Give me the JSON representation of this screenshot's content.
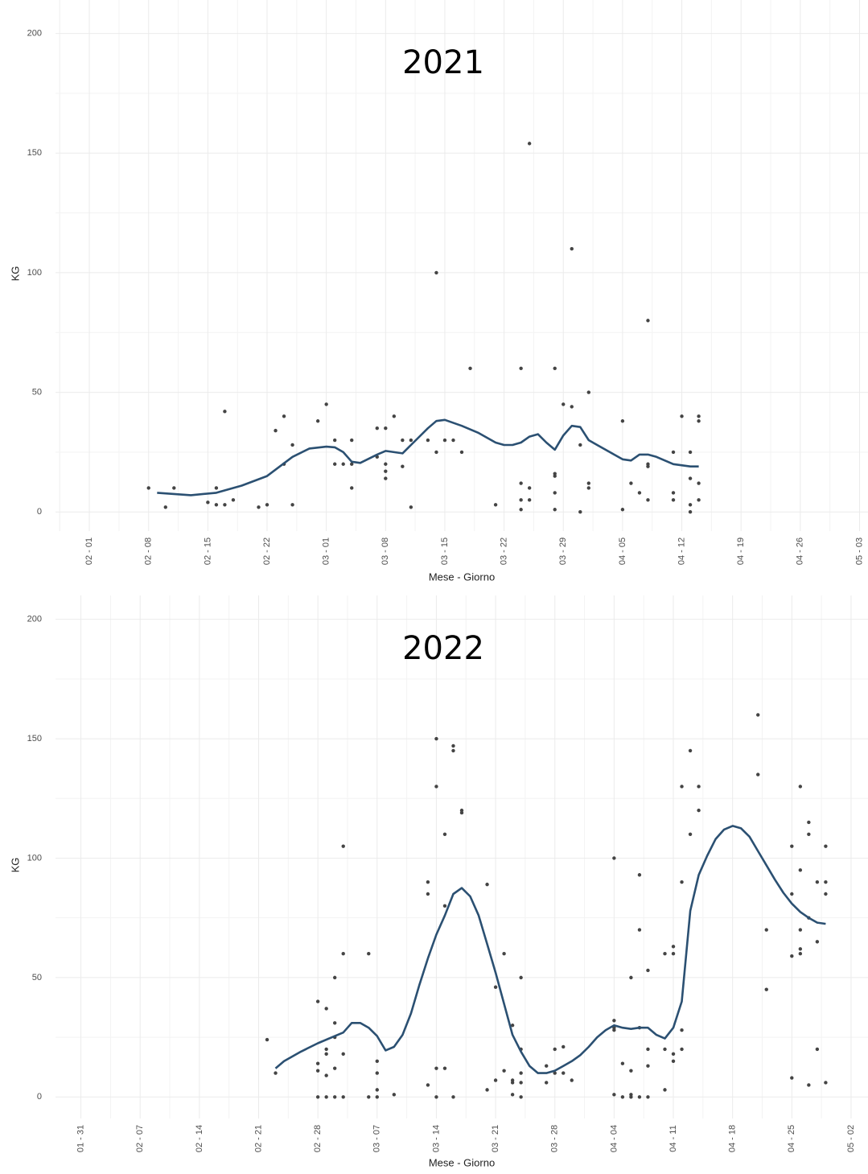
{
  "chart_data": [
    {
      "type": "scatter",
      "title": "2021",
      "x_label": "Mese - Giorno",
      "y_label": "KG",
      "xlim": [
        "01 - 28",
        "05 - 04"
      ],
      "xticks": [
        "02 - 01",
        "02 - 08",
        "02 - 15",
        "02 - 22",
        "03 - 01",
        "03 - 08",
        "03 - 15",
        "03 - 22",
        "03 - 29",
        "04 - 05",
        "04 - 12",
        "04 - 19",
        "04 - 26",
        "05 - 03"
      ],
      "ylim": [
        -8,
        214
      ],
      "yticks": [
        0,
        50,
        100,
        150,
        200
      ],
      "grid": true,
      "series": [
        {
          "mode": "points",
          "color": "#444444",
          "x": [
            "02 - 08",
            "02 - 10",
            "02 - 11",
            "02 - 15",
            "02 - 16",
            "02 - 16",
            "02 - 17",
            "02 - 17",
            "02 - 18",
            "02 - 21",
            "02 - 22",
            "02 - 23",
            "02 - 24",
            "02 - 24",
            "02 - 25",
            "02 - 25",
            "02 - 28",
            "03 - 01",
            "03 - 02",
            "03 - 02",
            "03 - 03",
            "03 - 04",
            "03 - 04",
            "03 - 04",
            "03 - 07",
            "03 - 07",
            "03 - 08",
            "03 - 08",
            "03 - 08",
            "03 - 08",
            "03 - 09",
            "03 - 10",
            "03 - 10",
            "03 - 11",
            "03 - 11",
            "03 - 13",
            "03 - 14",
            "03 - 14",
            "03 - 15",
            "03 - 16",
            "03 - 17",
            "03 - 18",
            "03 - 21",
            "03 - 24",
            "03 - 24",
            "03 - 24",
            "03 - 24",
            "03 - 25",
            "03 - 25",
            "03 - 25",
            "03 - 28",
            "03 - 28",
            "03 - 28",
            "03 - 28",
            "03 - 28",
            "03 - 29",
            "03 - 30",
            "03 - 30",
            "03 - 31",
            "03 - 31",
            "04 - 01",
            "04 - 01",
            "04 - 01",
            "04 - 05",
            "04 - 05",
            "04 - 06",
            "04 - 07",
            "04 - 08",
            "04 - 08",
            "04 - 08",
            "04 - 08",
            "04 - 11",
            "04 - 11",
            "04 - 11",
            "04 - 12",
            "04 - 13",
            "04 - 13",
            "04 - 13",
            "04 - 13",
            "04 - 14",
            "04 - 14",
            "04 - 14",
            "04 - 14"
          ],
          "values": [
            10,
            2,
            10,
            4,
            10,
            3,
            42,
            3,
            5,
            2,
            3,
            34,
            40,
            20,
            28,
            3,
            38,
            45,
            30,
            20,
            20,
            30,
            10,
            20,
            35,
            23,
            35,
            20,
            17,
            14,
            40,
            30,
            19,
            30,
            2,
            30,
            100,
            25,
            30,
            30,
            25,
            60,
            3,
            60,
            12,
            5,
            1,
            154,
            10,
            5,
            60,
            15,
            16,
            8,
            1,
            45,
            110,
            44,
            28,
            0,
            50,
            12,
            10,
            38,
            1,
            12,
            8,
            80,
            20,
            19,
            5,
            25,
            8,
            5,
            40,
            25,
            14,
            3,
            0,
            40,
            38,
            12,
            5
          ]
        },
        {
          "mode": "line",
          "color": "#2b5072",
          "x": [
            "02 - 09",
            "02 - 13",
            "02 - 16",
            "02 - 19",
            "02 - 22",
            "02 - 25",
            "02 - 27",
            "03 - 01",
            "03 - 02",
            "03 - 03",
            "03 - 04",
            "03 - 05",
            "03 - 07",
            "03 - 08",
            "03 - 10",
            "03 - 11",
            "03 - 13",
            "03 - 14",
            "03 - 15",
            "03 - 17",
            "03 - 19",
            "03 - 21",
            "03 - 22",
            "03 - 23",
            "03 - 24",
            "03 - 25",
            "03 - 26",
            "03 - 27",
            "03 - 28",
            "03 - 29",
            "03 - 30",
            "03 - 31",
            "04 - 01",
            "04 - 02",
            "04 - 04",
            "04 - 05",
            "04 - 06",
            "04 - 07",
            "04 - 08",
            "04 - 09",
            "04 - 11",
            "04 - 13",
            "04 - 14"
          ],
          "values": [
            8,
            7,
            8,
            11,
            15,
            23,
            26.5,
            27.3,
            27,
            25,
            21,
            20.5,
            24,
            25.5,
            24.5,
            28,
            35,
            38,
            38.5,
            36,
            33,
            29,
            28,
            28,
            29,
            31.5,
            32.5,
            29,
            26,
            32,
            36,
            35.5,
            30,
            28,
            24,
            22,
            21.5,
            24,
            24,
            23,
            20,
            19,
            19
          ]
        }
      ]
    },
    {
      "type": "scatter",
      "title": "2022",
      "x_label": "Mese - Giorno",
      "y_label": "KG",
      "xlim": [
        "01 - 28",
        "05 - 04"
      ],
      "xticks": [
        "01 - 31",
        "02 - 07",
        "02 - 14",
        "02 - 21",
        "02 - 28",
        "03 - 07",
        "03 - 14",
        "03 - 21",
        "03 - 28",
        "04 - 04",
        "04 - 11",
        "04 - 18",
        "04 - 25",
        "05 - 02"
      ],
      "ylim": [
        -9,
        210
      ],
      "yticks": [
        0,
        50,
        100,
        150,
        200
      ],
      "grid": true,
      "series": [
        {
          "mode": "points",
          "color": "#444444",
          "x": [
            "02 - 22",
            "02 - 23",
            "02 - 28",
            "02 - 28",
            "02 - 28",
            "02 - 28",
            "03 - 01",
            "03 - 01",
            "03 - 01",
            "03 - 01",
            "03 - 01",
            "03 - 02",
            "03 - 02",
            "03 - 02",
            "03 - 02",
            "03 - 02",
            "03 - 03",
            "03 - 03",
            "03 - 03",
            "03 - 03",
            "03 - 06",
            "03 - 06",
            "03 - 07",
            "03 - 07",
            "03 - 07",
            "03 - 07",
            "03 - 09",
            "03 - 13",
            "03 - 13",
            "03 - 13",
            "03 - 14",
            "03 - 14",
            "03 - 14",
            "03 - 14",
            "03 - 15",
            "03 - 15",
            "03 - 15",
            "03 - 16",
            "03 - 16",
            "03 - 16",
            "03 - 17",
            "03 - 17",
            "03 - 20",
            "03 - 20",
            "03 - 21",
            "03 - 21",
            "03 - 22",
            "03 - 22",
            "03 - 23",
            "03 - 23",
            "03 - 23",
            "03 - 23",
            "03 - 24",
            "03 - 24",
            "03 - 24",
            "03 - 24",
            "03 - 24",
            "03 - 27",
            "03 - 27",
            "03 - 28",
            "03 - 28",
            "03 - 29",
            "03 - 29",
            "03 - 30",
            "04 - 04",
            "04 - 04",
            "04 - 04",
            "04 - 04",
            "04 - 04",
            "04 - 05",
            "04 - 05",
            "04 - 06",
            "04 - 06",
            "04 - 06",
            "04 - 06",
            "04 - 07",
            "04 - 07",
            "04 - 07",
            "04 - 07",
            "04 - 08",
            "04 - 08",
            "04 - 08",
            "04 - 08",
            "04 - 10",
            "04 - 10",
            "04 - 10",
            "04 - 11",
            "04 - 11",
            "04 - 11",
            "04 - 11",
            "04 - 12",
            "04 - 12",
            "04 - 12",
            "04 - 12",
            "04 - 13",
            "04 - 13",
            "04 - 14",
            "04 - 14",
            "04 - 21",
            "04 - 21",
            "04 - 22",
            "04 - 22",
            "04 - 25",
            "04 - 25",
            "04 - 25",
            "04 - 25",
            "04 - 26",
            "04 - 26",
            "04 - 26",
            "04 - 26",
            "04 - 26",
            "04 - 27",
            "04 - 27",
            "04 - 27",
            "04 - 27",
            "04 - 28",
            "04 - 28",
            "04 - 28",
            "04 - 29",
            "04 - 29",
            "04 - 29",
            "04 - 29"
          ],
          "values": [
            24,
            10,
            40,
            14,
            11,
            0,
            37,
            20,
            18,
            9,
            0,
            50,
            31,
            25,
            12,
            0,
            105,
            60,
            18,
            0,
            60,
            0,
            15,
            10,
            3,
            0,
            1,
            90,
            85,
            5,
            150,
            130,
            12,
            0,
            110,
            80,
            12,
            147,
            145,
            0,
            120,
            119,
            89,
            3,
            46,
            7,
            60,
            11,
            30,
            7,
            6,
            1,
            50,
            20,
            10,
            6,
            0,
            13,
            6,
            20,
            10,
            21,
            10,
            7,
            100,
            32,
            29,
            28,
            1,
            14,
            0,
            50,
            11,
            1,
            0,
            93,
            70,
            29,
            0,
            53,
            20,
            13,
            0,
            60,
            20,
            3,
            63,
            60,
            18,
            15,
            130,
            90,
            28,
            20,
            145,
            110,
            130,
            120,
            160,
            135,
            70,
            45,
            105,
            85,
            59,
            8,
            130,
            95,
            70,
            62,
            60,
            115,
            110,
            75,
            5,
            90,
            65,
            20,
            105,
            90,
            85,
            6
          ]
        },
        {
          "mode": "line",
          "color": "#2b5072",
          "x": [
            "02 - 23",
            "02 - 24",
            "02 - 26",
            "02 - 28",
            "03 - 02",
            "03 - 03",
            "03 - 04",
            "03 - 05",
            "03 - 06",
            "03 - 07",
            "03 - 08",
            "03 - 09",
            "03 - 10",
            "03 - 11",
            "03 - 12",
            "03 - 13",
            "03 - 14",
            "03 - 15",
            "03 - 16",
            "03 - 17",
            "03 - 18",
            "03 - 19",
            "03 - 20",
            "03 - 21",
            "03 - 22",
            "03 - 23",
            "03 - 24",
            "03 - 25",
            "03 - 26",
            "03 - 27",
            "03 - 28",
            "03 - 29",
            "03 - 30",
            "03 - 31",
            "04 - 01",
            "04 - 02",
            "04 - 03",
            "04 - 04",
            "04 - 05",
            "04 - 06",
            "04 - 07",
            "04 - 08",
            "04 - 09",
            "04 - 10",
            "04 - 11",
            "04 - 12",
            "04 - 13",
            "04 - 14",
            "04 - 15",
            "04 - 16",
            "04 - 17",
            "04 - 18",
            "04 - 19",
            "04 - 20",
            "04 - 21",
            "04 - 22",
            "04 - 23",
            "04 - 24",
            "04 - 25",
            "04 - 26",
            "04 - 27",
            "04 - 28",
            "04 - 29"
          ],
          "values": [
            12,
            15,
            19,
            22.5,
            25.5,
            27,
            31,
            31,
            29,
            25.5,
            19.5,
            21,
            26,
            35,
            47,
            58,
            68,
            76,
            85,
            87.5,
            84,
            76,
            64,
            52,
            39,
            26,
            19,
            13,
            10,
            10,
            11,
            13,
            15,
            17.5,
            21,
            25,
            28,
            30,
            29,
            28.5,
            29,
            29,
            26,
            24.5,
            29,
            40,
            78,
            93,
            101,
            108,
            112,
            113.5,
            112.5,
            109,
            103,
            97,
            91,
            85.5,
            81,
            77.5,
            75,
            73,
            72.5
          ]
        }
      ]
    }
  ]
}
